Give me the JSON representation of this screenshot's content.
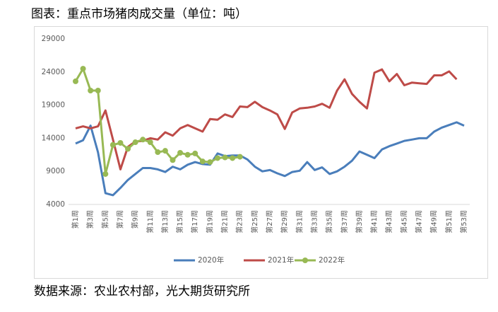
{
  "chart_data": {
    "type": "line",
    "title": "图表：重点市场猪肉成交量（单位：吨）",
    "source": "数据来源：农业农村部，光大期货研究所",
    "categories": [
      "第1周",
      null,
      "第3周",
      null,
      "第5周",
      null,
      "第7周",
      null,
      "第9周",
      null,
      "第11周",
      null,
      "第13周",
      null,
      "第15周",
      null,
      "第17周",
      null,
      "第19周",
      null,
      "第21周",
      null,
      "第23周",
      null,
      "第25周",
      null,
      "第27周",
      null,
      "第29周",
      null,
      "第31周",
      null,
      "第33周",
      null,
      "第35周",
      null,
      "第37周",
      null,
      "第39周",
      null,
      "第41周",
      null,
      "第43周",
      null,
      "第45周",
      null,
      "第47周",
      null,
      "第49周",
      null,
      "第51周",
      null,
      "第53周"
    ],
    "ylim": [
      4000,
      29000
    ],
    "yticks": [
      4000,
      9000,
      14000,
      19000,
      24000,
      29000
    ],
    "grid": false,
    "legend": "bottom",
    "series": [
      {
        "name": "2020年",
        "color": "#4a7ebb",
        "marker": false,
        "values": [
          13200,
          13700,
          15900,
          11900,
          5700,
          5400,
          6500,
          7700,
          8600,
          9500,
          9500,
          9300,
          8900,
          9700,
          9300,
          10000,
          10400,
          10100,
          10000,
          11700,
          11300,
          11400,
          11400,
          10800,
          9700,
          9000,
          9200,
          8700,
          8300,
          8900,
          9100,
          10400,
          9200,
          9600,
          8600,
          9000,
          9700,
          10600,
          12000,
          11500,
          11000,
          12300,
          12800,
          13200,
          13600,
          13800,
          14000,
          14000,
          15000,
          15600,
          16000,
          16400,
          15900
        ]
      },
      {
        "name": "2021年",
        "color": "#be4b48",
        "marker": false,
        "values": [
          15500,
          15800,
          15500,
          15800,
          18200,
          13800,
          9300,
          12700,
          13500,
          13600,
          14000,
          13800,
          14900,
          14400,
          15500,
          16000,
          15500,
          15000,
          16900,
          16800,
          17600,
          17200,
          18800,
          18700,
          19500,
          18700,
          18200,
          17600,
          15400,
          17900,
          18500,
          18600,
          18800,
          19200,
          18600,
          21200,
          22900,
          20700,
          19500,
          18500,
          23900,
          24400,
          22600,
          23700,
          22000,
          22400,
          22300,
          22200,
          23500,
          23500,
          24100,
          22900,
          null
        ]
      },
      {
        "name": "2022年",
        "color": "#98b954",
        "marker": true,
        "values": [
          22600,
          24500,
          21200,
          21200,
          8600,
          13000,
          13300,
          12400,
          13400,
          13800,
          13400,
          11900,
          12100,
          10700,
          11800,
          11500,
          11700,
          10500,
          10400,
          11000,
          11100,
          11000,
          11200,
          null,
          null,
          null,
          null,
          null,
          null,
          null,
          null,
          null,
          null,
          null,
          null,
          null,
          null,
          null,
          null,
          null,
          null,
          null,
          null,
          null,
          null,
          null,
          null,
          null,
          null,
          null,
          null,
          null,
          null
        ]
      }
    ]
  }
}
